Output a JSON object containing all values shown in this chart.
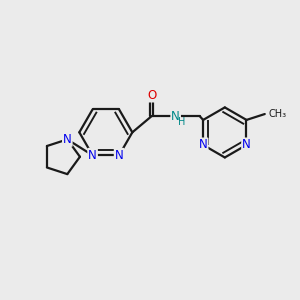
{
  "bg_color": "#ebebeb",
  "bond_color": "#1a1a1a",
  "N_color": "#0000ee",
  "O_color": "#dd0000",
  "NH_color": "#008888",
  "line_width": 1.6,
  "dbo": 0.055,
  "font_size": 8.5,
  "fig_width": 3.0,
  "fig_height": 3.0,
  "xlim": [
    0,
    10
  ],
  "ylim": [
    0,
    10
  ]
}
